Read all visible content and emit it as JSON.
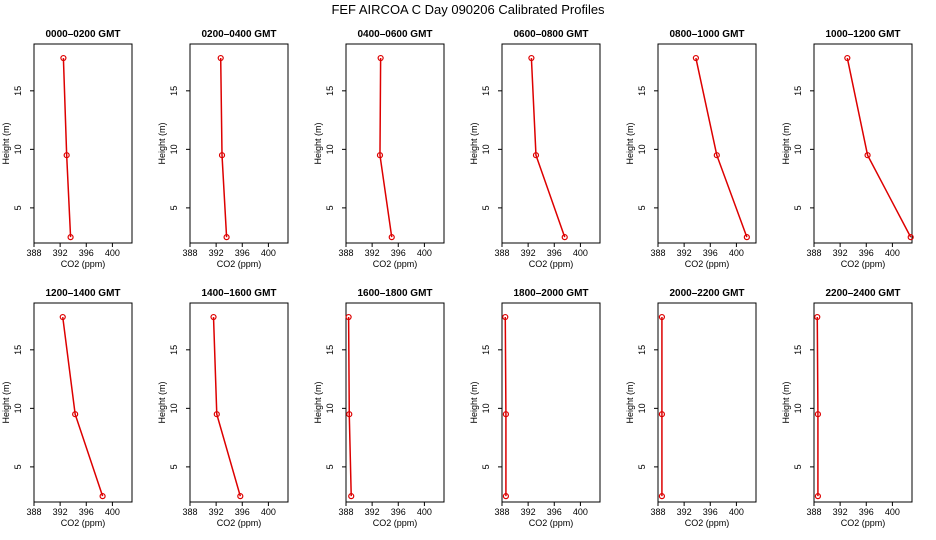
{
  "title": "FEF AIRCOA C  Day 090206  Calibrated Profiles",
  "colors": {
    "series": "#dd0000",
    "axes": "#000000",
    "background": "#ffffff"
  },
  "chart_data": [
    {
      "type": "line",
      "title": "0000–0200 GMT",
      "xlabel": "CO2 (ppm)",
      "ylabel": "Height (m)",
      "xlim": [
        388,
        403
      ],
      "ylim": [
        2,
        19
      ],
      "x_ticks": [
        388,
        392,
        396,
        400
      ],
      "y_ticks": [
        5,
        10,
        15
      ],
      "x": [
        392.5,
        393.0,
        393.6
      ],
      "y": [
        17.8,
        9.5,
        2.5
      ]
    },
    {
      "type": "line",
      "title": "0200–0400 GMT",
      "xlabel": "CO2 (ppm)",
      "ylabel": "Height (m)",
      "xlim": [
        388,
        403
      ],
      "ylim": [
        2,
        19
      ],
      "x_ticks": [
        388,
        392,
        396,
        400
      ],
      "y_ticks": [
        5,
        10,
        15
      ],
      "x": [
        392.7,
        392.9,
        393.6
      ],
      "y": [
        17.8,
        9.5,
        2.5
      ]
    },
    {
      "type": "line",
      "title": "0400–0600 GMT",
      "xlabel": "CO2 (ppm)",
      "ylabel": "Height (m)",
      "xlim": [
        388,
        403
      ],
      "ylim": [
        2,
        19
      ],
      "x_ticks": [
        388,
        392,
        396,
        400
      ],
      "y_ticks": [
        5,
        10,
        15
      ],
      "x": [
        393.3,
        393.2,
        395.0
      ],
      "y": [
        17.8,
        9.5,
        2.5
      ]
    },
    {
      "type": "line",
      "title": "0600–0800 GMT",
      "xlabel": "CO2 (ppm)",
      "ylabel": "Height (m)",
      "xlim": [
        388,
        403
      ],
      "ylim": [
        2,
        19
      ],
      "x_ticks": [
        388,
        392,
        396,
        400
      ],
      "y_ticks": [
        5,
        10,
        15
      ],
      "x": [
        392.5,
        393.2,
        397.6
      ],
      "y": [
        17.8,
        9.5,
        2.5
      ]
    },
    {
      "type": "line",
      "title": "0800–1000 GMT",
      "xlabel": "CO2 (ppm)",
      "ylabel": "Height (m)",
      "xlim": [
        388,
        403
      ],
      "ylim": [
        2,
        19
      ],
      "x_ticks": [
        388,
        392,
        396,
        400
      ],
      "y_ticks": [
        5,
        10,
        15
      ],
      "x": [
        393.8,
        397.0,
        401.6
      ],
      "y": [
        17.8,
        9.5,
        2.5
      ]
    },
    {
      "type": "line",
      "title": "1000–1200 GMT",
      "xlabel": "CO2 (ppm)",
      "ylabel": "Height (m)",
      "xlim": [
        388,
        403
      ],
      "ylim": [
        2,
        19
      ],
      "x_ticks": [
        388,
        392,
        396,
        400
      ],
      "y_ticks": [
        5,
        10,
        15
      ],
      "x": [
        393.1,
        396.2,
        402.8
      ],
      "y": [
        17.8,
        9.5,
        2.5
      ]
    },
    {
      "type": "line",
      "title": "1200–1400 GMT",
      "xlabel": "CO2 (ppm)",
      "ylabel": "Height (m)",
      "xlim": [
        388,
        403
      ],
      "ylim": [
        2,
        19
      ],
      "x_ticks": [
        388,
        392,
        396,
        400
      ],
      "y_ticks": [
        5,
        10,
        15
      ],
      "x": [
        392.4,
        394.3,
        398.5
      ],
      "y": [
        17.8,
        9.5,
        2.5
      ]
    },
    {
      "type": "line",
      "title": "1400–1600 GMT",
      "xlabel": "CO2 (ppm)",
      "ylabel": "Height (m)",
      "xlim": [
        388,
        403
      ],
      "ylim": [
        2,
        19
      ],
      "x_ticks": [
        388,
        392,
        396,
        400
      ],
      "y_ticks": [
        5,
        10,
        15
      ],
      "x": [
        391.6,
        392.1,
        395.7
      ],
      "y": [
        17.8,
        9.5,
        2.5
      ]
    },
    {
      "type": "line",
      "title": "1600–1800 GMT",
      "xlabel": "CO2 (ppm)",
      "ylabel": "Height (m)",
      "xlim": [
        388,
        403
      ],
      "ylim": [
        2,
        19
      ],
      "x_ticks": [
        388,
        392,
        396,
        400
      ],
      "y_ticks": [
        5,
        10,
        15
      ],
      "x": [
        388.4,
        388.5,
        388.8
      ],
      "y": [
        17.8,
        9.5,
        2.5
      ]
    },
    {
      "type": "line",
      "title": "1800–2000 GMT",
      "xlabel": "CO2 (ppm)",
      "ylabel": "Height (m)",
      "xlim": [
        388,
        403
      ],
      "ylim": [
        2,
        19
      ],
      "x_ticks": [
        388,
        392,
        396,
        400
      ],
      "y_ticks": [
        5,
        10,
        15
      ],
      "x": [
        388.5,
        388.6,
        388.6
      ],
      "y": [
        17.8,
        9.5,
        2.5
      ]
    },
    {
      "type": "line",
      "title": "2000–2200 GMT",
      "xlabel": "CO2 (ppm)",
      "ylabel": "Height (m)",
      "xlim": [
        388,
        403
      ],
      "ylim": [
        2,
        19
      ],
      "x_ticks": [
        388,
        392,
        396,
        400
      ],
      "y_ticks": [
        5,
        10,
        15
      ],
      "x": [
        388.6,
        388.6,
        388.6
      ],
      "y": [
        17.8,
        9.5,
        2.5
      ]
    },
    {
      "type": "line",
      "title": "2200–2400 GMT",
      "xlabel": "CO2 (ppm)",
      "ylabel": "Height (m)",
      "xlim": [
        388,
        403
      ],
      "ylim": [
        2,
        19
      ],
      "x_ticks": [
        388,
        392,
        396,
        400
      ],
      "y_ticks": [
        5,
        10,
        15
      ],
      "x": [
        388.5,
        388.6,
        388.6
      ],
      "y": [
        17.8,
        9.5,
        2.5
      ]
    }
  ]
}
